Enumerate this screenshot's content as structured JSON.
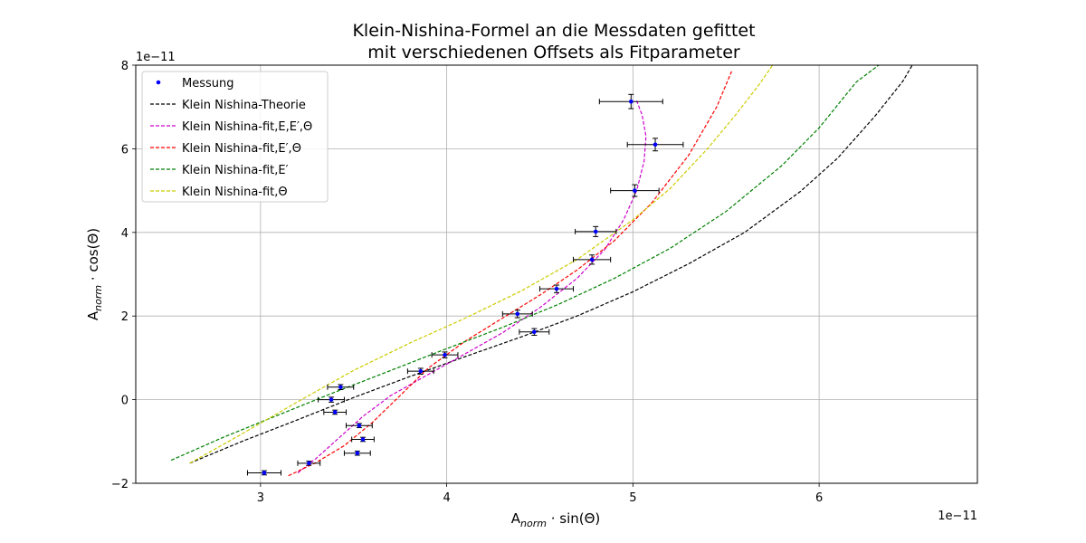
{
  "chart_data": {
    "type": "scatter",
    "title_line1": "Klein-Nishina-Formel an die Messdaten gefittet",
    "title_line2": "mit verschiedenen Offsets als Fitparameter",
    "xlabel_main": "A",
    "xlabel_sub": "norm",
    "xlabel_rest": " · sin(Θ)",
    "ylabel_main": "A",
    "ylabel_sub": "norm",
    "ylabel_rest": " · cos(Θ)",
    "x_offset_text": "1e−11",
    "y_offset_text": "1e−11",
    "xlim": [
      2.33,
      6.85
    ],
    "ylim": [
      -2,
      8
    ],
    "xticks": [
      3,
      4,
      5,
      6
    ],
    "yticks": [
      -2,
      0,
      2,
      4,
      6,
      8
    ],
    "grid": true,
    "legend_position": "top-left",
    "measurement": {
      "name": "Messung",
      "color": "#0000ff",
      "points": [
        {
          "x": 3.02,
          "y": -1.75,
          "xerr": 0.09,
          "yerr": 0.05
        },
        {
          "x": 3.26,
          "y": -1.52,
          "xerr": 0.06,
          "yerr": 0.05
        },
        {
          "x": 3.52,
          "y": -1.28,
          "xerr": 0.07,
          "yerr": 0.05
        },
        {
          "x": 3.55,
          "y": -0.95,
          "xerr": 0.06,
          "yerr": 0.05
        },
        {
          "x": 3.53,
          "y": -0.62,
          "xerr": 0.07,
          "yerr": 0.05
        },
        {
          "x": 3.4,
          "y": -0.3,
          "xerr": 0.06,
          "yerr": 0.05
        },
        {
          "x": 3.38,
          "y": 0.0,
          "xerr": 0.07,
          "yerr": 0.06
        },
        {
          "x": 3.43,
          "y": 0.3,
          "xerr": 0.07,
          "yerr": 0.06
        },
        {
          "x": 3.86,
          "y": 0.68,
          "xerr": 0.07,
          "yerr": 0.07
        },
        {
          "x": 3.99,
          "y": 1.07,
          "xerr": 0.07,
          "yerr": 0.07
        },
        {
          "x": 4.47,
          "y": 1.62,
          "xerr": 0.08,
          "yerr": 0.08
        },
        {
          "x": 4.38,
          "y": 2.05,
          "xerr": 0.08,
          "yerr": 0.09
        },
        {
          "x": 4.59,
          "y": 2.65,
          "xerr": 0.09,
          "yerr": 0.09
        },
        {
          "x": 4.78,
          "y": 3.35,
          "xerr": 0.1,
          "yerr": 0.11
        },
        {
          "x": 4.8,
          "y": 4.02,
          "xerr": 0.11,
          "yerr": 0.12
        },
        {
          "x": 5.01,
          "y": 5.0,
          "xerr": 0.13,
          "yerr": 0.14
        },
        {
          "x": 5.12,
          "y": 6.1,
          "xerr": 0.15,
          "yerr": 0.15
        },
        {
          "x": 4.99,
          "y": 7.13,
          "xerr": 0.17,
          "yerr": 0.17
        }
      ]
    },
    "series": [
      {
        "name": "Klein Nishina-Theorie",
        "color": "#000000",
        "x": [
          2.62,
          2.9,
          3.2,
          3.5,
          3.8,
          4.1,
          4.4,
          4.7,
          5.0,
          5.3,
          5.6,
          5.9,
          6.1,
          6.3,
          6.45,
          6.5
        ],
        "y": [
          -1.52,
          -1.0,
          -0.48,
          0.05,
          0.55,
          1.03,
          1.5,
          2.0,
          2.58,
          3.25,
          4.0,
          4.98,
          5.78,
          6.78,
          7.62,
          8.0
        ]
      },
      {
        "name": "Klein Nishina-fit,E,E′,Θ",
        "color": "#cc00cc",
        "x": [
          3.2,
          3.3,
          3.4,
          3.55,
          3.7,
          3.9,
          4.1,
          4.3,
          4.5,
          4.7,
          4.85,
          4.95,
          5.02,
          5.06,
          5.07,
          5.05,
          5.02
        ],
        "y": [
          -1.75,
          -1.4,
          -1.0,
          -0.4,
          0.1,
          0.6,
          1.1,
          1.6,
          2.2,
          2.9,
          3.6,
          4.3,
          5.0,
          5.7,
          6.3,
          6.8,
          7.15
        ]
      },
      {
        "name": "Klein Nishina-fit,E′,Θ",
        "color": "#ff0000",
        "x": [
          3.15,
          3.3,
          3.45,
          3.6,
          3.75,
          3.9,
          4.1,
          4.3,
          4.5,
          4.7,
          4.9,
          5.1,
          5.3,
          5.45,
          5.53
        ],
        "y": [
          -1.82,
          -1.5,
          -1.1,
          -0.55,
          0.1,
          0.75,
          1.4,
          1.95,
          2.5,
          3.1,
          3.8,
          4.7,
          5.85,
          7.0,
          7.85
        ]
      },
      {
        "name": "Klein Nishina-fit,E′",
        "color": "#008000",
        "x": [
          2.52,
          2.8,
          3.1,
          3.4,
          3.7,
          4.0,
          4.3,
          4.6,
          4.9,
          5.2,
          5.5,
          5.8,
          6.0,
          6.2,
          6.32
        ],
        "y": [
          -1.45,
          -0.9,
          -0.36,
          0.18,
          0.7,
          1.22,
          1.73,
          2.28,
          2.9,
          3.62,
          4.5,
          5.6,
          6.5,
          7.6,
          8.0
        ]
      },
      {
        "name": "Klein Nishina-fit,Θ",
        "color": "#cccc00",
        "x": [
          2.62,
          2.9,
          3.2,
          3.5,
          3.8,
          4.1,
          4.4,
          4.7,
          5.0,
          5.2,
          5.4,
          5.55,
          5.68,
          5.75
        ],
        "y": [
          -1.52,
          -0.82,
          -0.05,
          0.7,
          1.35,
          1.95,
          2.6,
          3.35,
          4.3,
          5.05,
          6.0,
          6.8,
          7.55,
          8.0
        ]
      }
    ]
  }
}
